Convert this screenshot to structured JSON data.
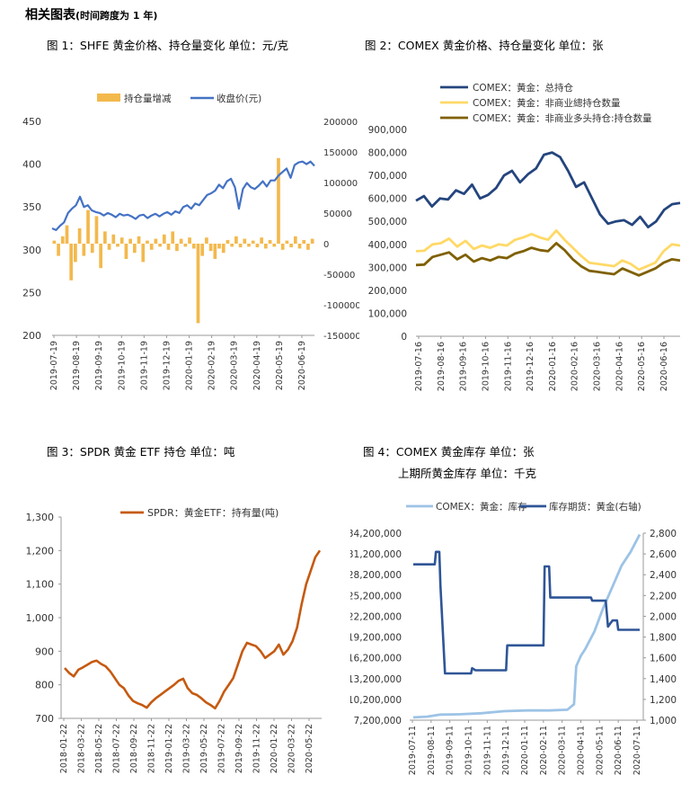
{
  "page": {
    "section_title": "相关图表",
    "section_subtitle": "(时间跨度为 1 年)"
  },
  "chart_data": [
    {
      "id": "fig1",
      "title": "图 1：SHFE 黄金价格、持仓量变化    单位：元/克",
      "type": "line+bar",
      "x_ticks": [
        "2019-07-19",
        "2019-08-19",
        "2019-09-19",
        "2019-10-19",
        "2019-11-19",
        "2019-12-19",
        "2020-01-19",
        "2020-02-19",
        "2020-03-19",
        "2020-04-19",
        "2020-05-19",
        "2020-06-19"
      ],
      "left_axis": {
        "ylim": [
          200,
          450
        ],
        "ticks": [
          200,
          250,
          300,
          350,
          400,
          450
        ]
      },
      "right_axis": {
        "ylim": [
          -150000,
          200000
        ],
        "ticks": [
          -150000,
          -100000,
          -50000,
          0,
          50000,
          100000,
          150000,
          200000
        ],
        "tick_labels": [
          "-150000",
          "-100000",
          "-50000",
          "0",
          "50000",
          "100000",
          "150000",
          "200000"
        ]
      },
      "series": [
        {
          "name": "持仓量增减",
          "axis": "right",
          "kind": "bar",
          "color": "#f3b94d",
          "values": [
            5000,
            -20000,
            12000,
            30000,
            -60000,
            -30000,
            25000,
            -20000,
            55000,
            -15000,
            45000,
            -40000,
            20000,
            -10000,
            15000,
            -5000,
            10000,
            -25000,
            8000,
            -15000,
            12000,
            -30000,
            5000,
            -10000,
            8000,
            -5000,
            15000,
            -10000,
            20000,
            -12000,
            8000,
            -5000,
            10000,
            -8000,
            -130000,
            -20000,
            10000,
            -12000,
            -25000,
            -8000,
            -15000,
            6000,
            -5000,
            12000,
            -6000,
            8000,
            -5000,
            5000,
            -6000,
            10000,
            -8000,
            6000,
            -5000,
            140000,
            -10000,
            5000,
            -6000,
            12000,
            -8000,
            6000,
            -10000,
            8000
          ]
        },
        {
          "name": "收盘价(元)",
          "axis": "left",
          "kind": "line",
          "color": "#4472c4",
          "values": [
            325,
            323,
            328,
            332,
            343,
            348,
            352,
            362,
            350,
            352,
            346,
            344,
            343,
            340,
            343,
            341,
            338,
            342,
            340,
            341,
            339,
            336,
            340,
            341,
            337,
            340,
            342,
            339,
            342,
            344,
            341,
            345,
            343,
            350,
            352,
            348,
            354,
            352,
            358,
            364,
            366,
            369,
            376,
            372,
            380,
            383,
            373,
            348,
            371,
            378,
            373,
            371,
            375,
            380,
            374,
            381,
            381,
            387,
            391,
            395,
            384,
            399,
            402,
            403,
            400,
            403,
            398
          ]
        }
      ]
    },
    {
      "id": "fig2",
      "title": "图 2：COMEX 黄金价格、持仓量变化    单位：张",
      "type": "line",
      "x_ticks": [
        "2019-07-16",
        "2019-08-16",
        "2019-09-16",
        "2019-10-16",
        "2019-11-16",
        "2019-12-16",
        "2020-01-16",
        "2020-02-16",
        "2020-03-16",
        "2020-04-16",
        "2020-05-16",
        "2020-06-16"
      ],
      "ylim": [
        0,
        900000
      ],
      "y_ticks": [
        0,
        100000,
        200000,
        300000,
        400000,
        500000,
        600000,
        700000,
        800000,
        900000
      ],
      "y_tick_labels": [
        "0",
        "100,000",
        "200,000",
        "300,000",
        "400,000",
        "500,000",
        "600,000",
        "700,000",
        "800,000",
        "900,000"
      ],
      "series": [
        {
          "name": "COMEX：黄金：总持仓",
          "color": "#24457e",
          "values": [
            590000,
            610000,
            565000,
            600000,
            595000,
            635000,
            620000,
            660000,
            600000,
            615000,
            645000,
            700000,
            720000,
            670000,
            705000,
            730000,
            790000,
            800000,
            780000,
            720000,
            650000,
            670000,
            600000,
            530000,
            490000,
            500000,
            505000,
            485000,
            520000,
            475000,
            500000,
            550000,
            575000,
            580000
          ]
        },
        {
          "name": "COMEX：黄金：非商业總持仓数量",
          "color": "#ffd966",
          "values": [
            370000,
            372000,
            400000,
            405000,
            425000,
            390000,
            415000,
            380000,
            395000,
            385000,
            400000,
            395000,
            420000,
            430000,
            445000,
            430000,
            420000,
            460000,
            420000,
            385000,
            350000,
            320000,
            315000,
            310000,
            305000,
            330000,
            315000,
            290000,
            305000,
            320000,
            370000,
            400000,
            395000
          ]
        },
        {
          "name": "COMEX：黄金：非商业多头持仓:持仓数量",
          "color": "#7f6000",
          "values": [
            310000,
            312000,
            345000,
            355000,
            365000,
            335000,
            355000,
            325000,
            340000,
            330000,
            345000,
            340000,
            360000,
            370000,
            385000,
            375000,
            370000,
            405000,
            375000,
            335000,
            305000,
            285000,
            280000,
            275000,
            270000,
            295000,
            280000,
            265000,
            280000,
            295000,
            320000,
            335000,
            330000
          ]
        }
      ]
    },
    {
      "id": "fig3",
      "title": "图 3：SPDR 黄金 ETF 持仓    单位：吨",
      "type": "line",
      "x_ticks": [
        "2018-01-22",
        "2018-03-22",
        "2018-05-22",
        "2018-07-22",
        "2018-09-22",
        "2018-11-22",
        "2019-01-22",
        "2019-03-22",
        "2019-05-22",
        "2019-07-22",
        "2019-09-22",
        "2019-11-22",
        "2020-01-22",
        "2020-03-22",
        "2020-05-22"
      ],
      "ylim": [
        700,
        1300
      ],
      "y_ticks": [
        700,
        800,
        900,
        1000,
        1100,
        1200,
        1300
      ],
      "y_tick_labels": [
        "700",
        "800",
        "900",
        "1,000",
        "1,100",
        "1,200",
        "1,300"
      ],
      "series": [
        {
          "name": "SPDR：黄金ETF：持有量(吨)",
          "color": "#c55a11",
          "values": [
            850,
            835,
            825,
            845,
            852,
            860,
            868,
            872,
            862,
            855,
            840,
            820,
            800,
            790,
            768,
            752,
            745,
            740,
            732,
            748,
            760,
            770,
            780,
            790,
            800,
            812,
            818,
            790,
            775,
            770,
            760,
            748,
            740,
            730,
            752,
            780,
            800,
            820,
            860,
            900,
            925,
            920,
            915,
            900,
            880,
            890,
            900,
            920,
            890,
            905,
            930,
            970,
            1040,
            1100,
            1140,
            1180,
            1200
          ]
        }
      ]
    },
    {
      "id": "fig4",
      "title": "图 4：COMEX 黄金库存    单位：张",
      "title2": "上期所黄金库存    单位：千克",
      "type": "line",
      "x_ticks": [
        "2019-07-11",
        "2019-08-11",
        "2019-09-11",
        "2019-10-11",
        "2019-11-11",
        "2019-12-11",
        "2020-01-11",
        "2020-02-11",
        "2020-03-11",
        "2020-04-11",
        "2020-05-11",
        "2020-06-11",
        "2020-07-11"
      ],
      "left_axis": {
        "ylim": [
          7200000,
          34200000
        ],
        "ticks": [
          7200000,
          10200000,
          13200000,
          16200000,
          19200000,
          22200000,
          25200000,
          28200000,
          31200000,
          34200000
        ],
        "tick_labels": [
          "7,200,000",
          "10,200,000",
          "13,200,000",
          "16,200,000",
          "19,200,000",
          "22,200,000",
          "25,200,000",
          "28,200,000",
          "31,200,000",
          "34,200,000"
        ]
      },
      "right_axis": {
        "ylim": [
          1000,
          2800
        ],
        "ticks": [
          1000,
          1200,
          1400,
          1600,
          1800,
          2000,
          2200,
          2400,
          2600,
          2800
        ],
        "tick_labels": [
          "1,000",
          "1,200",
          "1,400",
          "1,600",
          "1,800",
          "2,000",
          "2,200",
          "2,400",
          "2,600",
          "2,800"
        ]
      },
      "series": [
        {
          "name": "COMEX：黄金：库存",
          "axis": "left",
          "color": "#9dc3e6",
          "x_frac": [
            0,
            0.06,
            0.12,
            0.2,
            0.3,
            0.4,
            0.5,
            0.6,
            0.68,
            0.71,
            0.72,
            0.74,
            0.76,
            0.8,
            0.84,
            0.88,
            0.92,
            0.96,
            1.0
          ],
          "values": [
            7600000,
            7700000,
            8000000,
            8050000,
            8200000,
            8500000,
            8600000,
            8600000,
            8700000,
            9500000,
            15000000,
            16500000,
            17500000,
            20000000,
            23500000,
            26500000,
            29500000,
            31500000,
            34000000
          ]
        },
        {
          "name": "库存期货：黄金(右轴)",
          "axis": "right",
          "color": "#2f5597",
          "x_frac": [
            0,
            0.095,
            0.1,
            0.115,
            0.12,
            0.14,
            0.16,
            0.255,
            0.26,
            0.275,
            0.28,
            0.41,
            0.415,
            0.575,
            0.58,
            0.6,
            0.605,
            0.785,
            0.79,
            0.85,
            0.86,
            0.87,
            0.88,
            0.9,
            0.905,
            1.0
          ],
          "values": [
            2500,
            2500,
            2620,
            2620,
            2300,
            1450,
            1450,
            1450,
            1500,
            1480,
            1480,
            1480,
            1720,
            1720,
            2480,
            2480,
            2180,
            2180,
            2150,
            2150,
            1900,
            1930,
            1960,
            1960,
            1870,
            1870
          ]
        }
      ]
    }
  ]
}
